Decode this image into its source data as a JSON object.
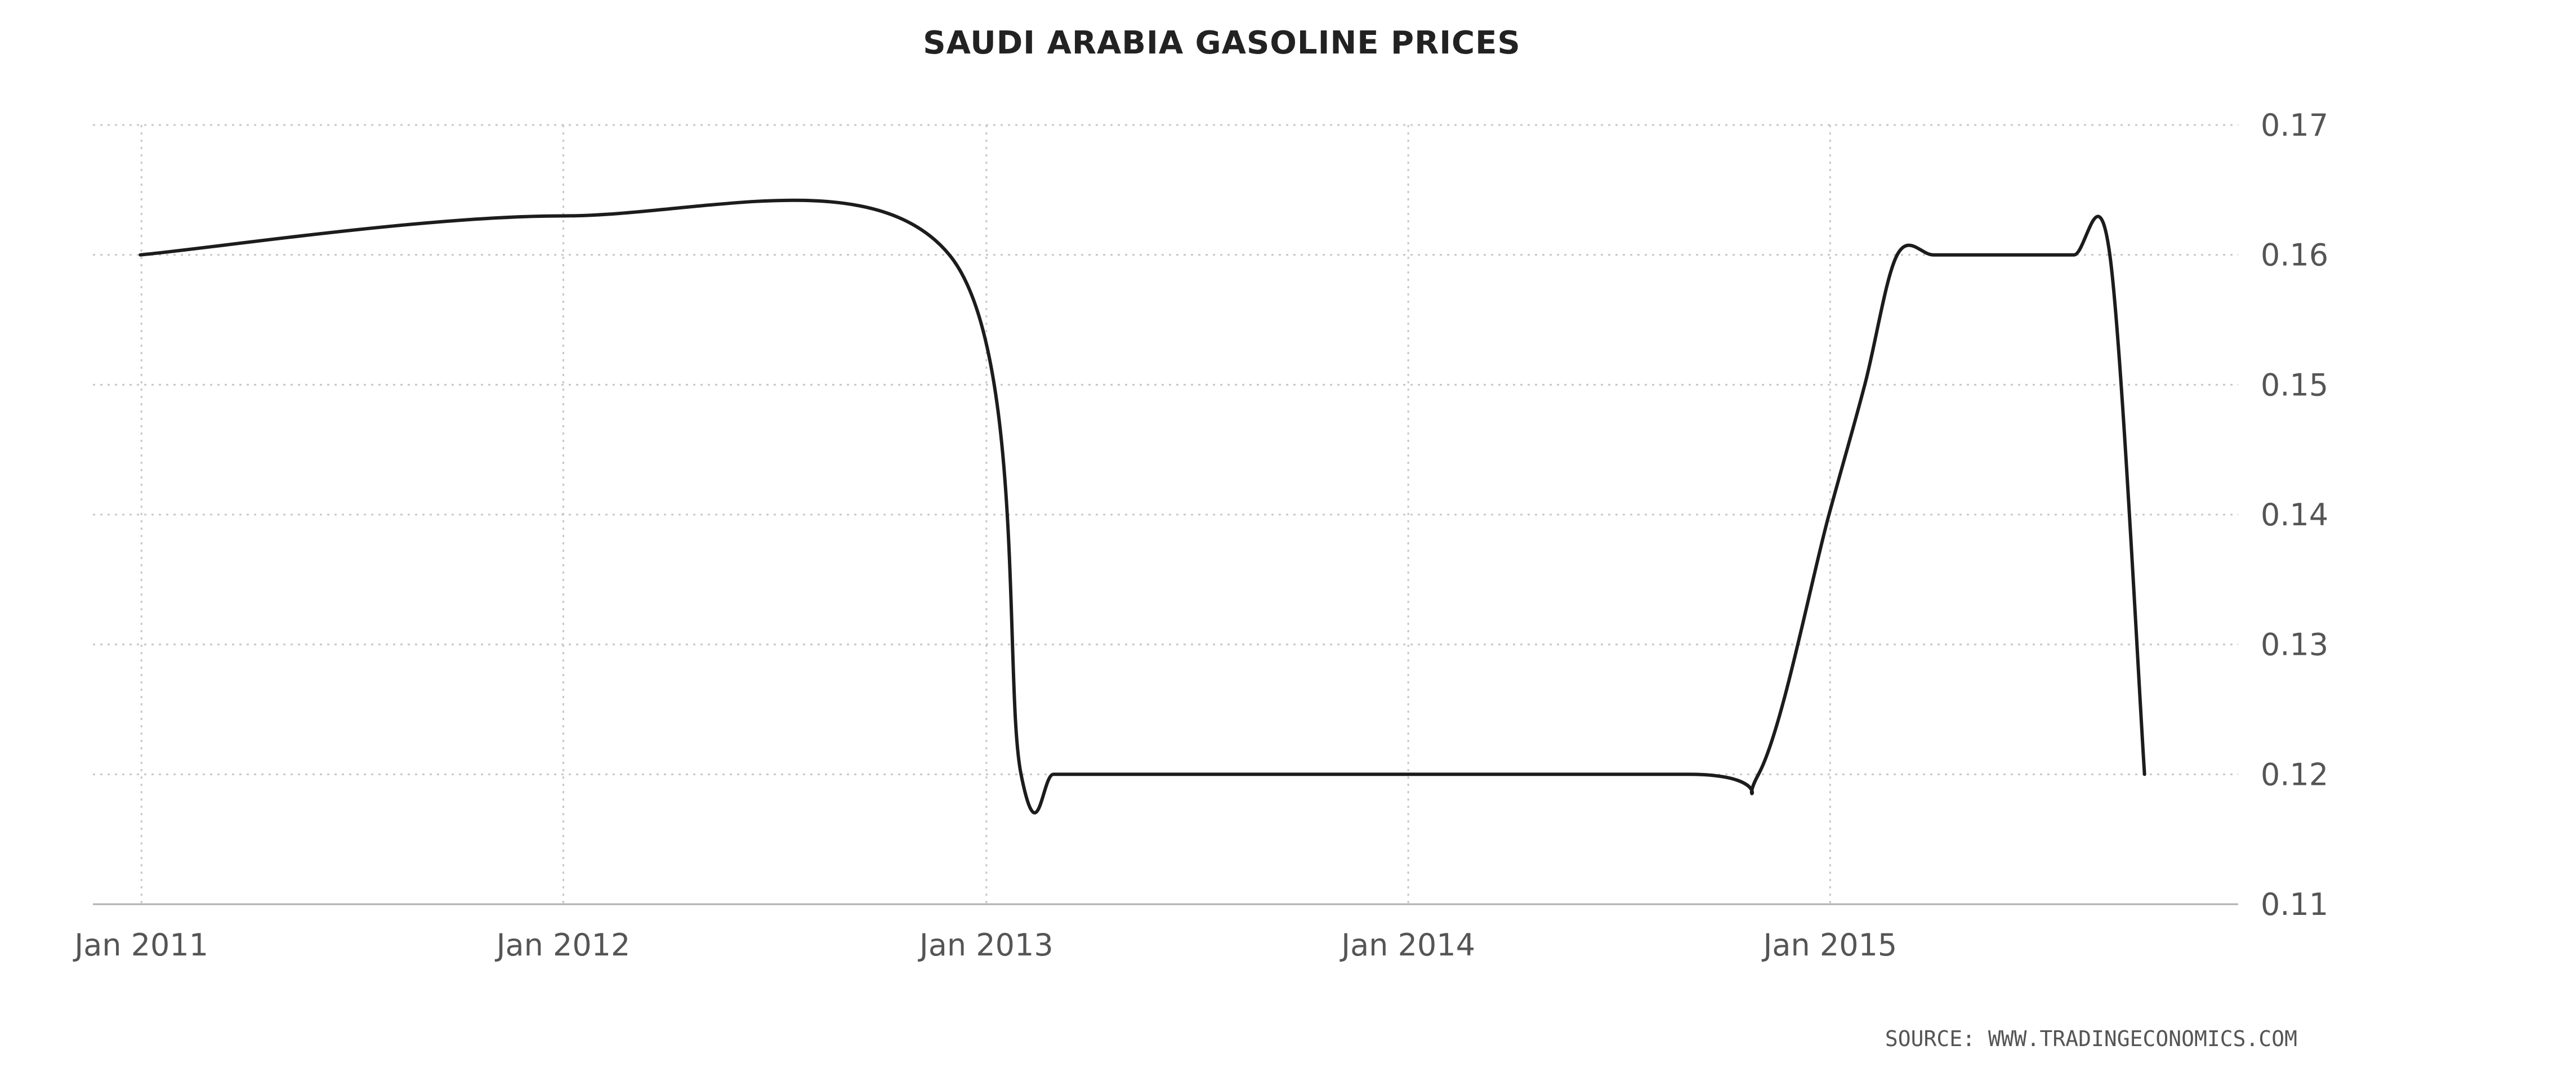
{
  "chart_data": {
    "type": "line",
    "title": "SAUDI ARABIA GASOLINE PRICES",
    "source": "SOURCE: WWW.TRADINGECONOMICS.COM",
    "xlabel": "",
    "ylabel": "",
    "x_ticks": [
      "Jan 2011",
      "Jan 2012",
      "Jan 2013",
      "Jan 2014",
      "Jan 2015"
    ],
    "y_ticks": [
      "0.11",
      "0.12",
      "0.13",
      "0.14",
      "0.15",
      "0.16",
      "0.17"
    ],
    "ylim": [
      0.11,
      0.17
    ],
    "xlim": [
      "2010-11-20",
      "2015-12-20"
    ],
    "grid": true,
    "legend": "none",
    "line_color": "#1c1c1c",
    "series": [
      {
        "x": [
          "2010-12-31",
          "2011-12-31",
          "2012-11-30",
          "2013-01-31",
          "2013-02-28",
          "2013-03-31",
          "2013-04-30",
          "2013-05-31",
          "2014-08-31",
          "2014-10-31",
          "2014-12-31",
          "2015-01-31",
          "2015-02-28",
          "2015-03-31",
          "2015-04-30",
          "2015-05-31",
          "2015-06-30",
          "2015-07-31",
          "2015-08-31",
          "2015-09-30"
        ],
        "values": [
          0.16,
          0.163,
          0.16,
          0.12,
          0.12,
          0.12,
          0.12,
          0.12,
          0.12,
          0.12,
          0.14,
          0.15,
          0.16,
          0.16,
          0.16,
          0.16,
          0.16,
          0.16,
          0.16,
          0.12
        ]
      }
    ]
  }
}
